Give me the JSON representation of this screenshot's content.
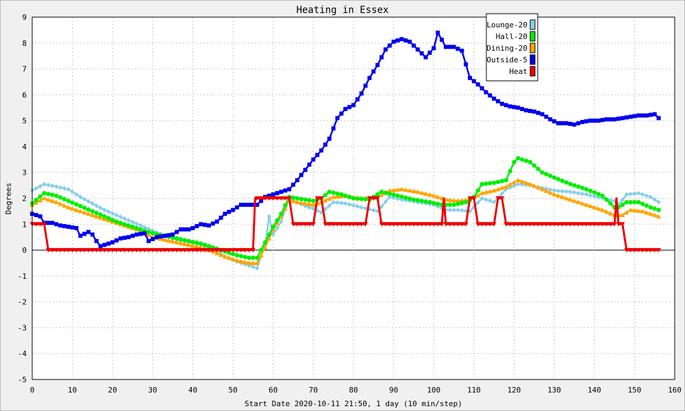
{
  "chart_data": {
    "type": "line",
    "title": "Heating in Essex",
    "xlabel": "Start Date 2020-10-11 21:50, 1 day (10 min/step)",
    "ylabel": "Degrees",
    "xlim": [
      0,
      160
    ],
    "ylim": [
      -5,
      9
    ],
    "xticks": [
      0,
      10,
      20,
      30,
      40,
      50,
      60,
      70,
      80,
      90,
      100,
      110,
      120,
      130,
      140,
      150,
      160
    ],
    "yticks": [
      -5,
      -4,
      -3,
      -2,
      -1,
      0,
      1,
      2,
      3,
      4,
      5,
      6,
      7,
      8,
      9
    ],
    "grid": true,
    "legend_position": "top-right",
    "series": [
      {
        "name": "Lounge-20",
        "color": "#87ceeb",
        "marker": "diamond",
        "points": [
          [
            0,
            2.3
          ],
          [
            3,
            2.55
          ],
          [
            6,
            2.45
          ],
          [
            9,
            2.35
          ],
          [
            12,
            2.05
          ],
          [
            15,
            1.8
          ],
          [
            18,
            1.55
          ],
          [
            21,
            1.35
          ],
          [
            24,
            1.15
          ],
          [
            27,
            0.95
          ],
          [
            30,
            0.75
          ],
          [
            33,
            0.55
          ],
          [
            36,
            0.4
          ],
          [
            39,
            0.3
          ],
          [
            42,
            0.2
          ],
          [
            45,
            0.05
          ],
          [
            48,
            -0.25
          ],
          [
            51,
            -0.45
          ],
          [
            54,
            -0.6
          ],
          [
            56,
            -0.7
          ],
          [
            58,
            0.2
          ],
          [
            59,
            1.3
          ],
          [
            60,
            0.6
          ],
          [
            62,
            1.1
          ],
          [
            64,
            2.0
          ],
          [
            66,
            1.85
          ],
          [
            68,
            1.7
          ],
          [
            70,
            1.6
          ],
          [
            72,
            1.45
          ],
          [
            75,
            1.85
          ],
          [
            78,
            1.8
          ],
          [
            82,
            1.65
          ],
          [
            86,
            1.5
          ],
          [
            89,
            2.05
          ],
          [
            92,
            1.95
          ],
          [
            96,
            1.85
          ],
          [
            100,
            1.75
          ],
          [
            103,
            1.55
          ],
          [
            106,
            1.55
          ],
          [
            109,
            1.5
          ],
          [
            112,
            2.0
          ],
          [
            115,
            1.85
          ],
          [
            118,
            2.35
          ],
          [
            121,
            2.55
          ],
          [
            124,
            2.5
          ],
          [
            127,
            2.4
          ],
          [
            130,
            2.3
          ],
          [
            134,
            2.25
          ],
          [
            138,
            2.15
          ],
          [
            142,
            2.0
          ],
          [
            145,
            1.9
          ],
          [
            146,
            1.75
          ],
          [
            148,
            2.15
          ],
          [
            151,
            2.2
          ],
          [
            154,
            2.05
          ],
          [
            156,
            1.85
          ]
        ]
      },
      {
        "name": "Hall-20",
        "color": "#00ee00",
        "marker": "circle",
        "points": [
          [
            0,
            1.8
          ],
          [
            3,
            2.2
          ],
          [
            6,
            2.1
          ],
          [
            9,
            1.9
          ],
          [
            12,
            1.7
          ],
          [
            15,
            1.5
          ],
          [
            18,
            1.3
          ],
          [
            21,
            1.1
          ],
          [
            24,
            0.95
          ],
          [
            27,
            0.8
          ],
          [
            30,
            0.65
          ],
          [
            33,
            0.55
          ],
          [
            36,
            0.45
          ],
          [
            39,
            0.35
          ],
          [
            42,
            0.25
          ],
          [
            45,
            0.1
          ],
          [
            48,
            -0.05
          ],
          [
            51,
            -0.2
          ],
          [
            54,
            -0.3
          ],
          [
            56,
            -0.3
          ],
          [
            58,
            0.3
          ],
          [
            60,
            0.9
          ],
          [
            62,
            1.4
          ],
          [
            64,
            2.05
          ],
          [
            66,
            2.0
          ],
          [
            68,
            1.95
          ],
          [
            70,
            1.9
          ],
          [
            72,
            2.0
          ],
          [
            74,
            2.25
          ],
          [
            77,
            2.15
          ],
          [
            80,
            2.0
          ],
          [
            84,
            1.95
          ],
          [
            87,
            2.25
          ],
          [
            91,
            2.1
          ],
          [
            95,
            1.95
          ],
          [
            99,
            1.85
          ],
          [
            102,
            1.75
          ],
          [
            105,
            1.75
          ],
          [
            108,
            1.85
          ],
          [
            110,
            2.05
          ],
          [
            112,
            2.55
          ],
          [
            115,
            2.6
          ],
          [
            118,
            2.7
          ],
          [
            120,
            3.4
          ],
          [
            121,
            3.55
          ],
          [
            124,
            3.4
          ],
          [
            127,
            3.0
          ],
          [
            130,
            2.8
          ],
          [
            134,
            2.55
          ],
          [
            138,
            2.35
          ],
          [
            142,
            2.1
          ],
          [
            145,
            1.65
          ],
          [
            146,
            1.65
          ],
          [
            148,
            1.85
          ],
          [
            151,
            1.85
          ],
          [
            154,
            1.65
          ],
          [
            156,
            1.55
          ]
        ]
      },
      {
        "name": "Dining-20",
        "color": "#ffa500",
        "marker": "triangle",
        "points": [
          [
            0,
            1.75
          ],
          [
            3,
            2.0
          ],
          [
            6,
            1.85
          ],
          [
            9,
            1.65
          ],
          [
            12,
            1.5
          ],
          [
            15,
            1.35
          ],
          [
            18,
            1.2
          ],
          [
            21,
            1.05
          ],
          [
            24,
            0.9
          ],
          [
            27,
            0.75
          ],
          [
            30,
            0.5
          ],
          [
            33,
            0.4
          ],
          [
            36,
            0.3
          ],
          [
            39,
            0.2
          ],
          [
            42,
            0.1
          ],
          [
            45,
            -0.05
          ],
          [
            48,
            -0.25
          ],
          [
            51,
            -0.4
          ],
          [
            54,
            -0.5
          ],
          [
            56,
            -0.5
          ],
          [
            58,
            0.1
          ],
          [
            60,
            0.8
          ],
          [
            62,
            1.3
          ],
          [
            64,
            1.95
          ],
          [
            66,
            1.85
          ],
          [
            68,
            1.8
          ],
          [
            70,
            1.75
          ],
          [
            72,
            1.85
          ],
          [
            75,
            2.05
          ],
          [
            78,
            2.1
          ],
          [
            82,
            2.0
          ],
          [
            86,
            2.05
          ],
          [
            89,
            2.3
          ],
          [
            92,
            2.35
          ],
          [
            96,
            2.25
          ],
          [
            100,
            2.1
          ],
          [
            103,
            1.95
          ],
          [
            106,
            1.9
          ],
          [
            109,
            1.95
          ],
          [
            112,
            2.2
          ],
          [
            115,
            2.3
          ],
          [
            118,
            2.45
          ],
          [
            121,
            2.7
          ],
          [
            124,
            2.55
          ],
          [
            127,
            2.35
          ],
          [
            130,
            2.15
          ],
          [
            134,
            1.95
          ],
          [
            138,
            1.75
          ],
          [
            142,
            1.55
          ],
          [
            145,
            1.35
          ],
          [
            147,
            1.35
          ],
          [
            149,
            1.55
          ],
          [
            152,
            1.5
          ],
          [
            155,
            1.35
          ],
          [
            156,
            1.3
          ]
        ]
      },
      {
        "name": "Outside-5",
        "color": "#0000ee",
        "marker": "square",
        "points": [
          [
            0,
            1.4
          ],
          [
            2,
            1.3
          ],
          [
            3,
            1.05
          ],
          [
            5,
            1.05
          ],
          [
            7,
            0.95
          ],
          [
            9,
            0.9
          ],
          [
            11,
            0.85
          ],
          [
            12,
            0.55
          ],
          [
            14,
            0.7
          ],
          [
            15,
            0.6
          ],
          [
            16,
            0.35
          ],
          [
            17,
            0.15
          ],
          [
            18,
            0.2
          ],
          [
            20,
            0.3
          ],
          [
            22,
            0.45
          ],
          [
            24,
            0.5
          ],
          [
            26,
            0.6
          ],
          [
            28,
            0.65
          ],
          [
            29,
            0.35
          ],
          [
            31,
            0.5
          ],
          [
            33,
            0.55
          ],
          [
            35,
            0.6
          ],
          [
            37,
            0.8
          ],
          [
            39,
            0.8
          ],
          [
            40,
            0.85
          ],
          [
            42,
            1.0
          ],
          [
            44,
            0.95
          ],
          [
            46,
            1.1
          ],
          [
            48,
            1.4
          ],
          [
            50,
            1.55
          ],
          [
            52,
            1.75
          ],
          [
            54,
            1.75
          ],
          [
            56,
            1.75
          ],
          [
            58,
            2.05
          ],
          [
            60,
            2.15
          ],
          [
            62,
            2.25
          ],
          [
            64,
            2.35
          ],
          [
            66,
            2.7
          ],
          [
            68,
            3.1
          ],
          [
            70,
            3.5
          ],
          [
            72,
            3.85
          ],
          [
            74,
            4.3
          ],
          [
            76,
            5.1
          ],
          [
            78,
            5.45
          ],
          [
            80,
            5.6
          ],
          [
            82,
            6.05
          ],
          [
            84,
            6.65
          ],
          [
            86,
            7.15
          ],
          [
            88,
            7.75
          ],
          [
            90,
            8.05
          ],
          [
            92,
            8.15
          ],
          [
            94,
            8.05
          ],
          [
            96,
            7.75
          ],
          [
            98,
            7.45
          ],
          [
            100,
            7.8
          ],
          [
            101,
            8.4
          ],
          [
            103,
            7.85
          ],
          [
            105,
            7.85
          ],
          [
            107,
            7.7
          ],
          [
            109,
            6.65
          ],
          [
            111,
            6.4
          ],
          [
            113,
            6.1
          ],
          [
            115,
            5.85
          ],
          [
            117,
            5.65
          ],
          [
            119,
            5.55
          ],
          [
            121,
            5.5
          ],
          [
            123,
            5.4
          ],
          [
            125,
            5.35
          ],
          [
            127,
            5.25
          ],
          [
            129,
            5.05
          ],
          [
            131,
            4.9
          ],
          [
            133,
            4.9
          ],
          [
            135,
            4.85
          ],
          [
            137,
            4.95
          ],
          [
            139,
            5.0
          ],
          [
            141,
            5.0
          ],
          [
            143,
            5.05
          ],
          [
            145,
            5.05
          ],
          [
            147,
            5.1
          ],
          [
            149,
            5.15
          ],
          [
            151,
            5.2
          ],
          [
            153,
            5.2
          ],
          [
            155,
            5.25
          ],
          [
            156,
            5.1
          ]
        ]
      },
      {
        "name": "Heat",
        "color": "#ee0000",
        "marker": "triangle-down",
        "points": [
          [
            0,
            1
          ],
          [
            3,
            1
          ],
          [
            4,
            0
          ],
          [
            55,
            0
          ],
          [
            55.5,
            2
          ],
          [
            64,
            2
          ],
          [
            65,
            1
          ],
          [
            70,
            1
          ],
          [
            71,
            2
          ],
          [
            72,
            2
          ],
          [
            73,
            1
          ],
          [
            83,
            1
          ],
          [
            84,
            2
          ],
          [
            86,
            2
          ],
          [
            87,
            1
          ],
          [
            102,
            1
          ],
          [
            102.5,
            2
          ],
          [
            103,
            1
          ],
          [
            108,
            1
          ],
          [
            109,
            2
          ],
          [
            110,
            2
          ],
          [
            111,
            1
          ],
          [
            115,
            1
          ],
          [
            116,
            2
          ],
          [
            117,
            2
          ],
          [
            118,
            1
          ],
          [
            145,
            1
          ],
          [
            145.5,
            2
          ],
          [
            146,
            1
          ],
          [
            147,
            1
          ],
          [
            148,
            0
          ],
          [
            156,
            0
          ]
        ]
      }
    ]
  }
}
